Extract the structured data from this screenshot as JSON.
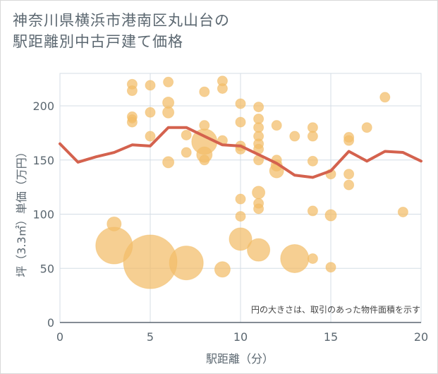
{
  "title": {
    "line1": "神奈川県横浜市港南区丸山台の",
    "line2": "駅距離別中古戸建て価格"
  },
  "note": "円の大きさは、取引のあった物件面積を示す",
  "colors": {
    "bubble": "#f2bd68",
    "line": "#d4624e",
    "grid": "#d4dde6",
    "axis": "#5b6770"
  },
  "chart_data": {
    "type": "scatter",
    "xlabel": "駅距離（分）",
    "ylabel": "坪（3.3㎡）単価（万円）",
    "xlim": [
      0,
      20
    ],
    "ylim": [
      0,
      230
    ],
    "xticks": [
      0,
      5,
      10,
      15,
      20
    ],
    "yticks": [
      0,
      50,
      100,
      150,
      200
    ],
    "grid": true,
    "series": [
      {
        "kind": "bubble",
        "points": [
          {
            "x": 3,
            "y": 71,
            "s": 26
          },
          {
            "x": 3,
            "y": 91,
            "s": 10
          },
          {
            "x": 4,
            "y": 220,
            "s": 7
          },
          {
            "x": 4,
            "y": 214,
            "s": 7
          },
          {
            "x": 4,
            "y": 190,
            "s": 7
          },
          {
            "x": 4,
            "y": 188,
            "s": 6
          },
          {
            "x": 4,
            "y": 185,
            "s": 7
          },
          {
            "x": 5,
            "y": 219,
            "s": 7
          },
          {
            "x": 5,
            "y": 194,
            "s": 7
          },
          {
            "x": 5,
            "y": 172,
            "s": 7
          },
          {
            "x": 5,
            "y": 56,
            "s": 38
          },
          {
            "x": 6,
            "y": 222,
            "s": 7
          },
          {
            "x": 6,
            "y": 203,
            "s": 8
          },
          {
            "x": 6,
            "y": 194,
            "s": 8
          },
          {
            "x": 6,
            "y": 148,
            "s": 8
          },
          {
            "x": 7,
            "y": 173,
            "s": 7
          },
          {
            "x": 7,
            "y": 157,
            "s": 7
          },
          {
            "x": 7,
            "y": 55,
            "s": 24
          },
          {
            "x": 8,
            "y": 213,
            "s": 7
          },
          {
            "x": 8,
            "y": 182,
            "s": 7
          },
          {
            "x": 8,
            "y": 167,
            "s": 18
          },
          {
            "x": 8,
            "y": 155,
            "s": 11
          },
          {
            "x": 8,
            "y": 150,
            "s": 7
          },
          {
            "x": 9,
            "y": 223,
            "s": 7
          },
          {
            "x": 9,
            "y": 216,
            "s": 7
          },
          {
            "x": 9,
            "y": 168,
            "s": 7
          },
          {
            "x": 9,
            "y": 49,
            "s": 11
          },
          {
            "x": 10,
            "y": 202,
            "s": 7
          },
          {
            "x": 10,
            "y": 185,
            "s": 7
          },
          {
            "x": 10,
            "y": 163,
            "s": 7
          },
          {
            "x": 10,
            "y": 160,
            "s": 7
          },
          {
            "x": 10,
            "y": 114,
            "s": 7
          },
          {
            "x": 10,
            "y": 98,
            "s": 7
          },
          {
            "x": 10,
            "y": 77,
            "s": 16
          },
          {
            "x": 11,
            "y": 199,
            "s": 7
          },
          {
            "x": 11,
            "y": 188,
            "s": 7
          },
          {
            "x": 11,
            "y": 180,
            "s": 7
          },
          {
            "x": 11,
            "y": 172,
            "s": 7
          },
          {
            "x": 11,
            "y": 165,
            "s": 7
          },
          {
            "x": 11,
            "y": 160,
            "s": 7
          },
          {
            "x": 11,
            "y": 150,
            "s": 7
          },
          {
            "x": 11,
            "y": 120,
            "s": 9
          },
          {
            "x": 11,
            "y": 110,
            "s": 7
          },
          {
            "x": 11,
            "y": 105,
            "s": 7
          },
          {
            "x": 11,
            "y": 67,
            "s": 16
          },
          {
            "x": 12,
            "y": 182,
            "s": 7
          },
          {
            "x": 12,
            "y": 150,
            "s": 7
          },
          {
            "x": 12,
            "y": 145,
            "s": 8
          },
          {
            "x": 12,
            "y": 140,
            "s": 10
          },
          {
            "x": 13,
            "y": 172,
            "s": 7
          },
          {
            "x": 13,
            "y": 59,
            "s": 20
          },
          {
            "x": 14,
            "y": 180,
            "s": 7
          },
          {
            "x": 14,
            "y": 172,
            "s": 7
          },
          {
            "x": 14,
            "y": 149,
            "s": 7
          },
          {
            "x": 14,
            "y": 103,
            "s": 7
          },
          {
            "x": 14,
            "y": 59,
            "s": 7
          },
          {
            "x": 15,
            "y": 137,
            "s": 7
          },
          {
            "x": 15,
            "y": 99,
            "s": 8
          },
          {
            "x": 15,
            "y": 51,
            "s": 7
          },
          {
            "x": 16,
            "y": 171,
            "s": 7
          },
          {
            "x": 16,
            "y": 168,
            "s": 7
          },
          {
            "x": 16,
            "y": 137,
            "s": 7
          },
          {
            "x": 16,
            "y": 127,
            "s": 7
          },
          {
            "x": 17,
            "y": 180,
            "s": 7
          },
          {
            "x": 18,
            "y": 208,
            "s": 7
          },
          {
            "x": 19,
            "y": 102,
            "s": 7
          }
        ]
      },
      {
        "kind": "line",
        "x": [
          0,
          1,
          2,
          3,
          4,
          5,
          6,
          7,
          8,
          9,
          10,
          11,
          12,
          13,
          14,
          15,
          16,
          17,
          18,
          19,
          20
        ],
        "values": [
          165,
          148,
          153,
          157,
          164,
          163,
          180,
          180,
          172,
          164,
          163,
          155,
          147,
          136,
          134,
          140,
          158,
          149,
          158,
          157,
          149
        ]
      }
    ]
  }
}
